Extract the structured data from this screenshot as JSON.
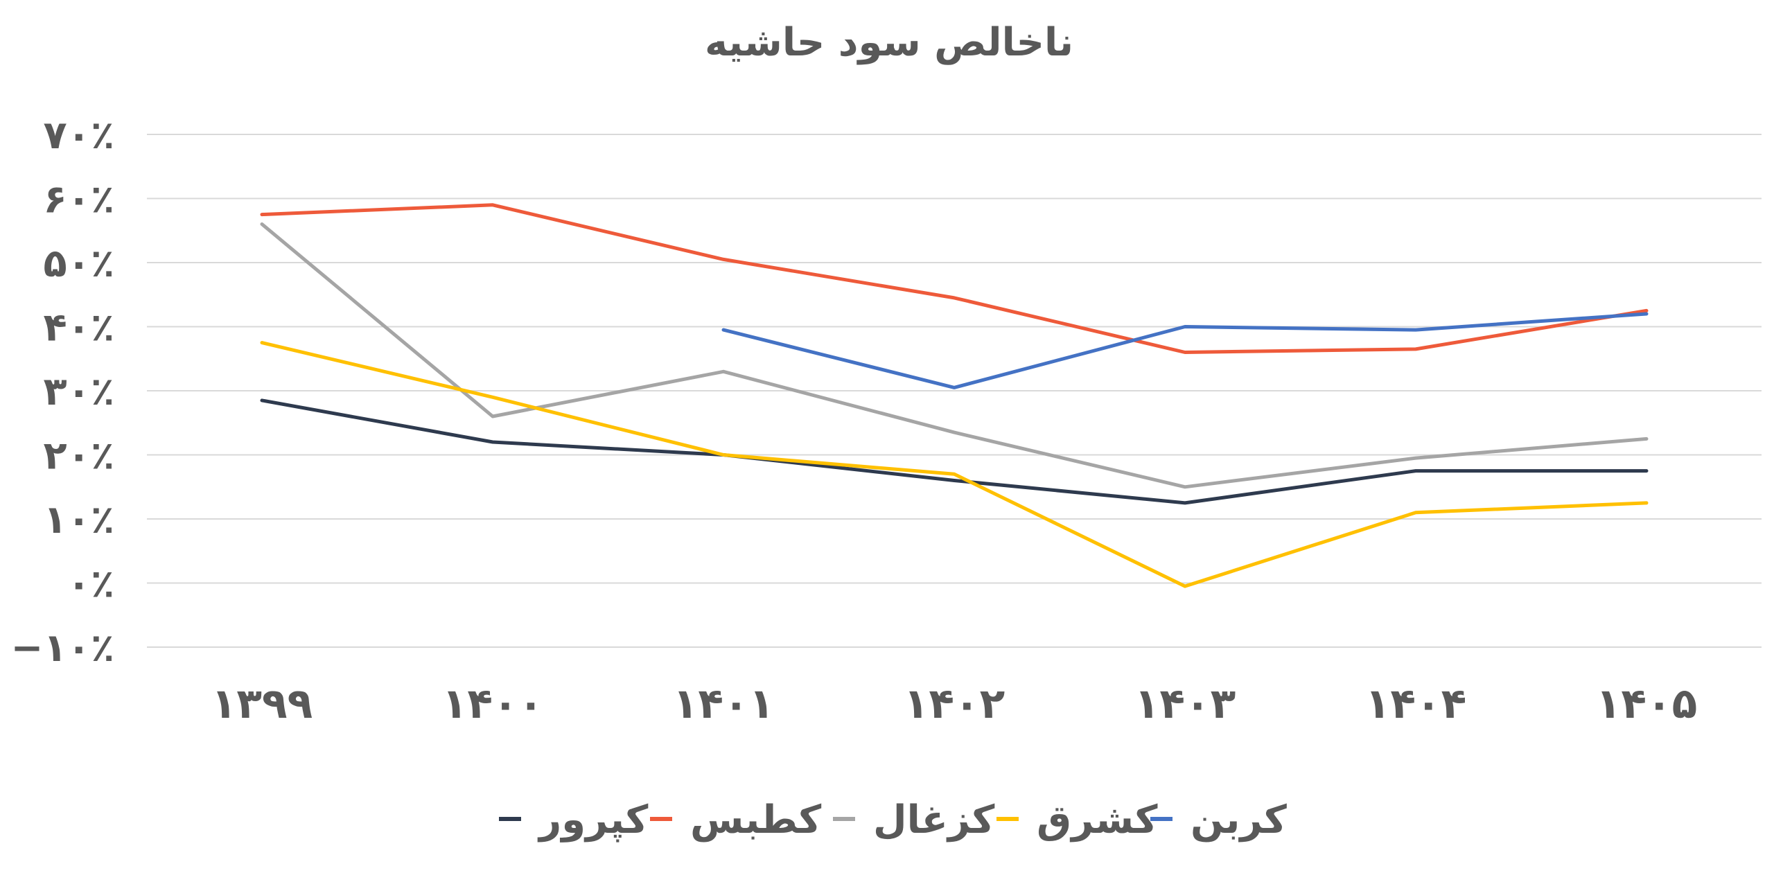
{
  "chart_data": {
    "type": "line",
    "title": "ناخالص سود حاشیه",
    "categories": [
      "۱۳۹۹",
      "۱۴۰۰",
      "۱۴۰۱",
      "۱۴۰۲",
      "۱۴۰۳",
      "۱۴۰۴",
      "۱۴۰۵"
    ],
    "ylim": [
      -10,
      70
    ],
    "ytick_values": [
      -10,
      0,
      10,
      20,
      30,
      40,
      50,
      60,
      70
    ],
    "ytick_labels": [
      "−۱۰٪",
      "۰٪",
      "۱۰٪",
      "۲۰٪",
      "۳۰٪",
      "۴۰٪",
      "۵۰٪",
      "۶۰٪",
      "۷۰٪"
    ],
    "grid": true,
    "legend_position": "bottom",
    "series": [
      {
        "name": "کپرور",
        "color": "#2E3A4E",
        "values": [
          28.5,
          22,
          20,
          16,
          12.5,
          17.5,
          17.5
        ]
      },
      {
        "name": "کطبس",
        "color": "#EE5A3A",
        "values": [
          57.5,
          59,
          50.5,
          44.5,
          36,
          36.5,
          42.5
        ]
      },
      {
        "name": "کزغال",
        "color": "#A5A5A5",
        "values": [
          56,
          26,
          33,
          23.5,
          15,
          19.5,
          22.5
        ]
      },
      {
        "name": "کشرق",
        "color": "#FFC000",
        "values": [
          37.5,
          29,
          20,
          17,
          -0.5,
          11,
          12.5
        ]
      },
      {
        "name": "کربن",
        "color": "#4472C4",
        "values": [
          null,
          null,
          39.5,
          30.5,
          40,
          39.5,
          42
        ]
      }
    ]
  }
}
